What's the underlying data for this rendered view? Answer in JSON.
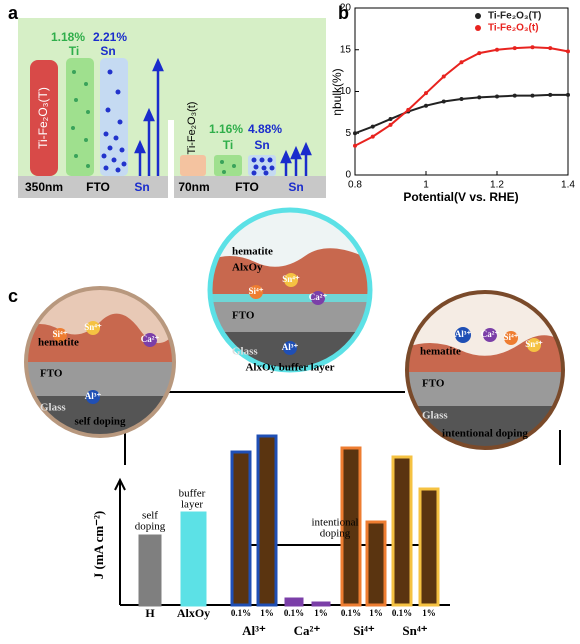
{
  "panel_a": {
    "letter": "a",
    "film_thick": "Ti-Fe₂O₃(T)",
    "film_thin": "Ti-Fe₂O₃(t)",
    "ti_pct_thick": "1.18%",
    "sn_pct_thick": "2.21%",
    "ti_pct_thin": "1.16%",
    "sn_pct_thin": "4.88%",
    "ti": "Ti",
    "sn": "Sn",
    "thick": "350nm",
    "thin": "70nm",
    "fto": "FTO"
  },
  "chart_data": [
    {
      "type": "line",
      "letter": "b",
      "x_label": "Potential(V vs. RHE)",
      "y_label": "ηbulk(%)",
      "x": [
        0.8,
        0.85,
        0.9,
        0.95,
        1.0,
        1.05,
        1.1,
        1.15,
        1.2,
        1.25,
        1.3,
        1.35,
        1.4
      ],
      "series": [
        {
          "name": "Ti-Fe₂O₃(T)",
          "color": "#222222",
          "values": [
            5.0,
            5.8,
            6.7,
            7.6,
            8.3,
            8.8,
            9.1,
            9.3,
            9.4,
            9.5,
            9.5,
            9.6,
            9.6
          ]
        },
        {
          "name": "Ti-Fe₂O₃(t)",
          "color": "#e8231f",
          "values": [
            3.5,
            4.6,
            6.0,
            7.8,
            9.8,
            11.8,
            13.5,
            14.6,
            15.0,
            15.2,
            15.3,
            15.2,
            14.8
          ]
        }
      ],
      "xlim": [
        0.8,
        1.4
      ],
      "xticks": [
        0.8,
        1.0,
        1.2,
        1.4
      ],
      "ylim": [
        0,
        20
      ],
      "yticks": [
        0,
        5,
        10,
        15,
        20
      ],
      "legend": "top-right"
    },
    {
      "type": "bar",
      "y_label": "J (mA cm⁻²)",
      "ylim": [
        0,
        180
      ],
      "bars": [
        {
          "label": "H",
          "value": 69,
          "fill": "#7f7f7f",
          "stroke": "#7f7f7f"
        },
        {
          "label": "AlxOy",
          "value": 92,
          "fill": "#5ce1e6",
          "stroke": "#5ce1e6"
        },
        {
          "label": "0.1%",
          "group": "Al³⁺",
          "value": 153,
          "fill": "#5a3410",
          "stroke": "#1f4fb5"
        },
        {
          "label": "1%",
          "value": 169,
          "fill": "#5a3410",
          "stroke": "#1f4fb5"
        },
        {
          "label": "0.1%",
          "group": "Ca²⁺",
          "value": 6,
          "fill": "#7b3fa8",
          "stroke": "#7b3fa8"
        },
        {
          "label": "1%",
          "value": 2,
          "fill": "#7b3fa8",
          "stroke": "#7b3fa8"
        },
        {
          "label": "0.1%",
          "group": "Si⁴⁺",
          "value": 157,
          "fill": "#5a3410",
          "stroke": "#ee7d31"
        },
        {
          "label": "1%",
          "value": 83,
          "fill": "#5a3410",
          "stroke": "#ee7d31"
        },
        {
          "label": "0.1%",
          "group": "Sn⁴⁺",
          "value": 148,
          "fill": "#5a3410",
          "stroke": "#f5c242"
        },
        {
          "label": "1%",
          "value": 116,
          "fill": "#5a3410",
          "stroke": "#f5c242"
        }
      ],
      "notes": [
        "self",
        "doping",
        "buffer",
        "layer",
        "intentional",
        "doping"
      ]
    }
  ],
  "panel_c": {
    "letter": "c",
    "hematite": "hematite",
    "fto": "FTO",
    "glass": "Glass",
    "alox": "AlxOy",
    "si": "Si⁴⁺",
    "sn": "Sn⁴⁺",
    "ca": "Ca²⁺",
    "al": "Al³⁺",
    "self_doping": "self doping",
    "buffer": "AlxOy buffer layer",
    "intentional": "intentional doping"
  }
}
